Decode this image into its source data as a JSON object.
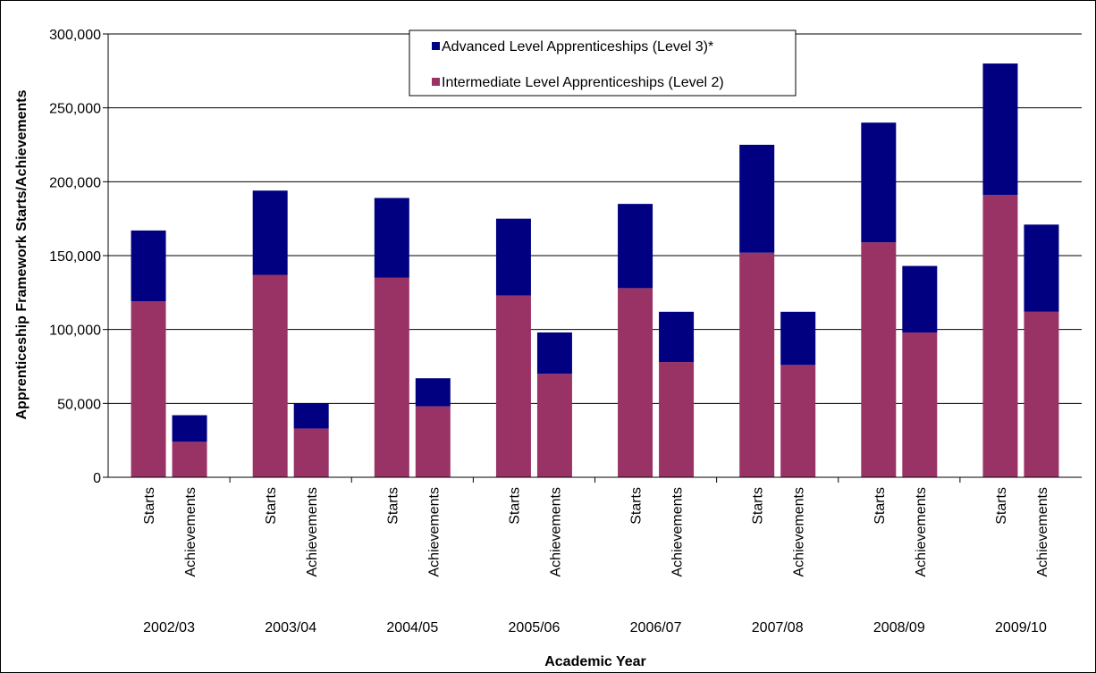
{
  "chart_data": {
    "type": "bar",
    "stacked": true,
    "xlabel": "Academic Year",
    "ylabel": "Apprenticeship Framework Starts/Achievements",
    "ylim": [
      0,
      300000
    ],
    "ytick_labels": [
      "0",
      "50,000",
      "100,000",
      "150,000",
      "200,000",
      "250,000",
      "300,000"
    ],
    "grid": true,
    "legend_position": "top-center",
    "groups": [
      "2002/03",
      "2003/04",
      "2004/05",
      "2005/06",
      "2006/07",
      "2007/08",
      "2008/09",
      "2009/10"
    ],
    "subcategories": [
      "Starts",
      "Achievements"
    ],
    "series": [
      {
        "name": "Intermediate Level Apprenticeships (Level 2)",
        "color": "#993366",
        "values": [
          119000,
          24000,
          137000,
          33000,
          135000,
          48000,
          123000,
          70000,
          128000,
          78000,
          152000,
          76000,
          159000,
          98000,
          191000,
          112000
        ]
      },
      {
        "name": "Advanced Level Apprenticeships (Level 3)*",
        "color": "#000080",
        "values": [
          48000,
          18000,
          57000,
          17000,
          54000,
          19000,
          52000,
          28000,
          57000,
          34000,
          73000,
          36000,
          81000,
          45000,
          89000,
          59000
        ]
      }
    ]
  }
}
